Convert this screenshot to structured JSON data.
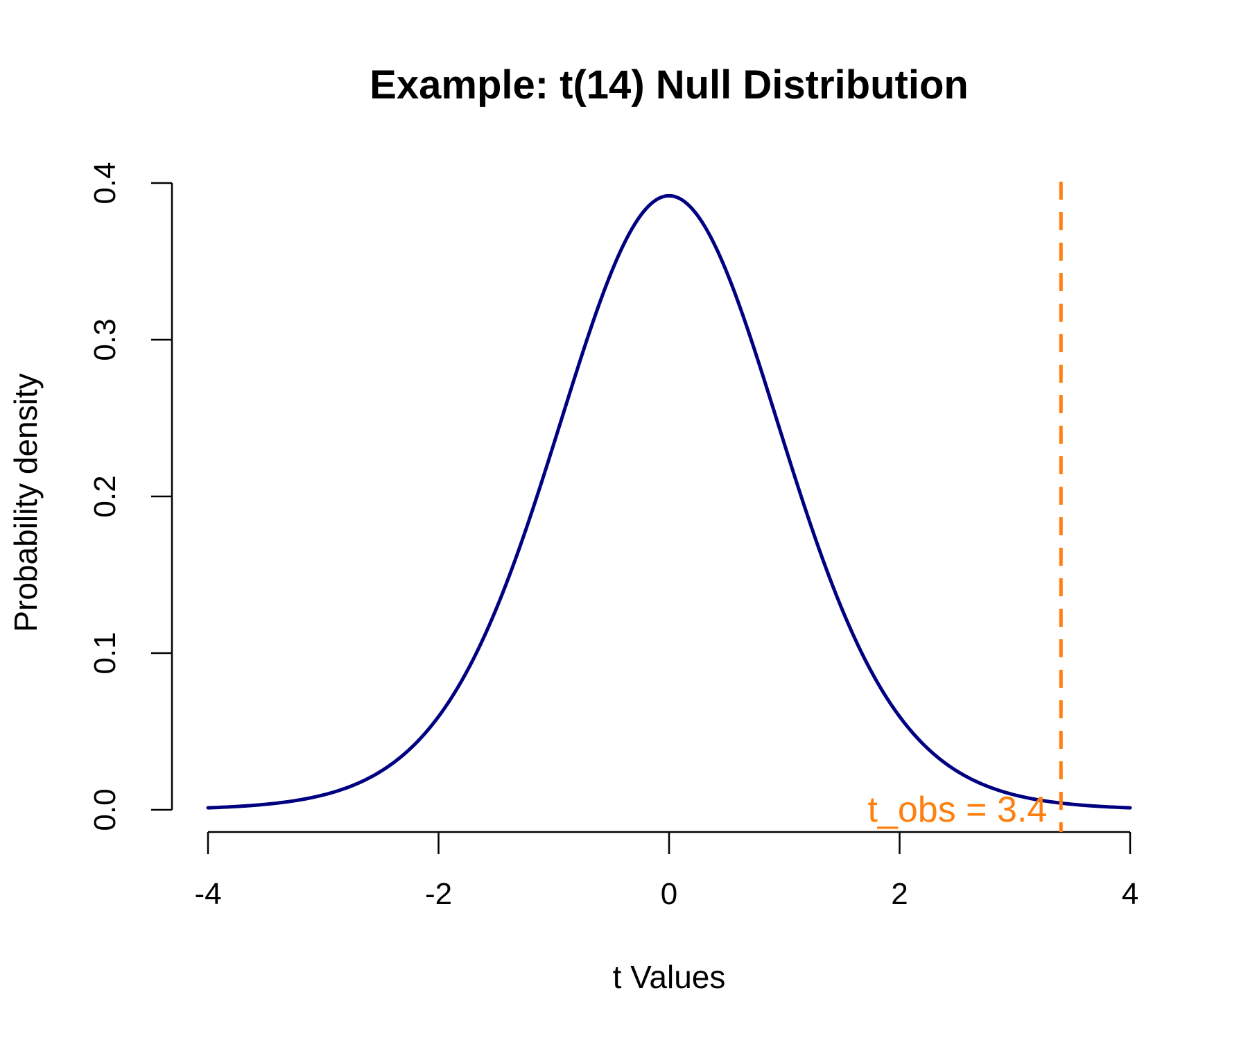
{
  "chart_data": {
    "type": "line",
    "title": "Example: t(14) Null Distribution",
    "xlabel": "t Values",
    "ylabel": "Probability density",
    "xlim": [
      -4,
      4
    ],
    "ylim": [
      0,
      0.4
    ],
    "x_ticks": [
      -4,
      -2,
      0,
      2,
      4
    ],
    "x_tick_labels": [
      "-4",
      "-2",
      "0",
      "2",
      "4"
    ],
    "y_ticks": [
      0,
      0.1,
      0.2,
      0.3,
      0.4
    ],
    "y_tick_labels": [
      "0.0",
      "0.1",
      "0.2",
      "0.3",
      "0.4"
    ],
    "grid": false,
    "series": [
      {
        "distribution": "t",
        "df": 14,
        "color": "#000080",
        "x": [
          -4.0,
          -3.5,
          -3.0,
          -2.5,
          -2.0,
          -1.5,
          -1.0,
          -0.5,
          0.0,
          0.5,
          1.0,
          1.5,
          2.0,
          2.5,
          3.0,
          3.5,
          4.0
        ],
        "y": [
          0.0013,
          0.0032,
          0.008,
          0.0199,
          0.0552,
          0.1237,
          0.2344,
          0.3429,
          0.3924,
          0.3429,
          0.2344,
          0.1237,
          0.0552,
          0.0199,
          0.008,
          0.0032,
          0.0013
        ]
      }
    ],
    "annotations": [
      {
        "type": "vline",
        "x": 3.4,
        "style": "dashed",
        "color": "#FF7F0E",
        "label": "t_obs = 3.4"
      }
    ]
  }
}
